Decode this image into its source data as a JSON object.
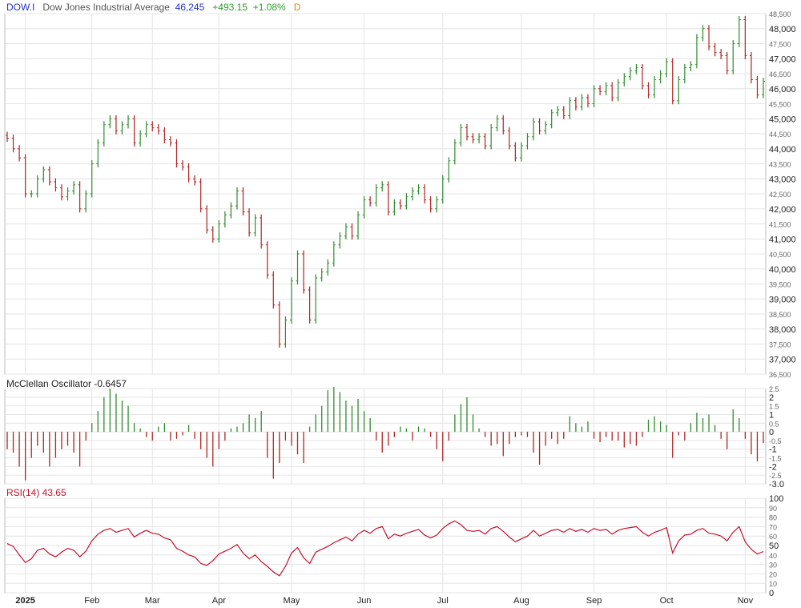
{
  "header": {
    "symbol": "DOW.I",
    "name": "Dow Jones Industrial Average",
    "last": "46,245",
    "change": "+493.15",
    "change_pct": "+1.08%",
    "period": "D"
  },
  "mcclellan": {
    "label": "McClellan Oscillator -0.6457"
  },
  "rsi": {
    "label": "RSI(14) 43.65"
  },
  "colors": {
    "up": "#2e8b2e",
    "down": "#b22222",
    "rsi_line": "#c8102e",
    "grid": "#e4e4e4",
    "frame": "#bbbbbb"
  },
  "chart_data": [
    {
      "type": "ohlc",
      "series": [
        {
          "name": "DOW.I"
        }
      ],
      "x_labels": [
        "2025",
        "Feb",
        "Mar",
        "Apr",
        "May",
        "Jun",
        "Jul",
        "Aug",
        "Sep",
        "Oct",
        "Nov"
      ],
      "y_ticks": [
        "48,500",
        "48,000",
        "47,500",
        "47,000",
        "46,500",
        "46,000",
        "45,500",
        "45,000",
        "44,500",
        "44,000",
        "43,500",
        "43,000",
        "42,500",
        "42,000",
        "41,500",
        "41,000",
        "40,500",
        "40,000",
        "39,500",
        "39,000",
        "38,500",
        "38,000",
        "37,500",
        "37,000",
        "36,500"
      ],
      "ylim": [
        36500,
        48500
      ],
      "last": 46245,
      "close": [
        44350,
        44000,
        43700,
        42500,
        42500,
        43000,
        43300,
        42900,
        42700,
        42400,
        42600,
        42800,
        42000,
        42500,
        43500,
        44200,
        44800,
        45000,
        44600,
        44800,
        45000,
        44200,
        44500,
        44800,
        44700,
        44600,
        44300,
        44200,
        43500,
        43400,
        43000,
        42900,
        42000,
        41300,
        41000,
        41500,
        41800,
        42100,
        42600,
        41900,
        41200,
        41700,
        40800,
        39800,
        38800,
        37500,
        38300,
        39600,
        40500,
        39300,
        38300,
        39700,
        39900,
        40200,
        40800,
        41100,
        41400,
        41100,
        41800,
        42300,
        42200,
        42700,
        42800,
        41900,
        42200,
        42100,
        42400,
        42600,
        42700,
        42300,
        42000,
        42300,
        43000,
        43600,
        44200,
        44700,
        44400,
        44300,
        44400,
        44100,
        44700,
        45000,
        44600,
        44100,
        43700,
        44100,
        44400,
        44900,
        44600,
        44800,
        45200,
        45300,
        45100,
        45600,
        45400,
        45700,
        45500,
        46000,
        45900,
        46100,
        45700,
        46200,
        46400,
        46600,
        46700,
        46100,
        45800,
        46300,
        46500,
        46900,
        45600,
        46300,
        46700,
        46800,
        47700,
        48000,
        47400,
        47200,
        47100,
        46600,
        47500,
        48300,
        47100,
        46300,
        45800,
        46245
      ]
    },
    {
      "type": "bar",
      "series": [
        {
          "name": "McClellan Oscillator"
        }
      ],
      "y_ticks": [
        "2.5",
        "2",
        "1.5",
        "1",
        "0.5",
        "0",
        "-0.5",
        "-1",
        "-1.5",
        "-2",
        "-2.5",
        "-3.0"
      ],
      "ylim": [
        -3.0,
        2.5
      ],
      "last": -0.6457,
      "values": [
        -1.0,
        -1.2,
        -2.0,
        -2.8,
        -1.5,
        -0.8,
        -1.2,
        -2.0,
        -1.5,
        -1.0,
        -0.8,
        -1.2,
        -2.0,
        -0.5,
        0.5,
        1.2,
        2.0,
        2.5,
        2.2,
        1.8,
        1.5,
        0.5,
        0.2,
        -0.3,
        -0.5,
        0.3,
        0.5,
        -0.5,
        -0.4,
        -0.2,
        0.4,
        -0.4,
        -1.0,
        -1.5,
        -2.0,
        -1.0,
        -0.5,
        0.2,
        0.3,
        0.5,
        1.0,
        0.8,
        1.2,
        -1.5,
        -2.7,
        -1.8,
        -0.5,
        -0.8,
        -1.3,
        -1.8,
        0.3,
        1.0,
        1.5,
        2.4,
        2.6,
        2.3,
        1.8,
        1.5,
        1.9,
        1.2,
        0.8,
        -0.5,
        -1.2,
        -0.8,
        -0.3,
        0.3,
        0.2,
        -0.5,
        0.3,
        0.2,
        -0.3,
        -1.0,
        -1.7,
        -0.5,
        1.0,
        1.6,
        2.0,
        1.0,
        0.2,
        -0.3,
        -0.8,
        -0.7,
        -1.4,
        -0.7,
        -0.3,
        -0.2,
        -0.3,
        -1.2,
        -1.9,
        -0.8,
        -0.4,
        -0.7,
        -0.4,
        0.9,
        0.5,
        0.3,
        0.6,
        -0.4,
        -0.6,
        -0.3,
        -0.5,
        -0.5,
        -0.9,
        -0.7,
        -0.8,
        -0.3,
        0.7,
        0.9,
        0.6,
        0.4,
        -1.5,
        -0.2,
        -0.5,
        0.5,
        1.1,
        0.8,
        1.0,
        0.4,
        -0.4,
        -1.0,
        1.3,
        0.8,
        -0.4,
        -1.3,
        -1.7,
        -0.65
      ]
    },
    {
      "type": "line",
      "series": [
        {
          "name": "RSI(14)"
        }
      ],
      "y_ticks": [
        "100",
        "90",
        "80",
        "70",
        "60",
        "50",
        "40",
        "30",
        "20",
        "10",
        "0"
      ],
      "ylim": [
        0,
        100
      ],
      "last": 43.65,
      "values": [
        52,
        49,
        40,
        32,
        36,
        45,
        47,
        41,
        38,
        43,
        47,
        45,
        38,
        44,
        55,
        62,
        66,
        68,
        64,
        66,
        68,
        59,
        63,
        66,
        63,
        62,
        58,
        56,
        47,
        44,
        40,
        38,
        31,
        29,
        34,
        41,
        44,
        47,
        51,
        42,
        36,
        40,
        33,
        28,
        22,
        18,
        28,
        42,
        48,
        37,
        31,
        43,
        46,
        49,
        53,
        56,
        59,
        55,
        62,
        66,
        63,
        68,
        70,
        57,
        62,
        60,
        63,
        65,
        67,
        61,
        58,
        61,
        68,
        73,
        76,
        72,
        66,
        65,
        66,
        62,
        68,
        70,
        65,
        59,
        54,
        57,
        60,
        66,
        60,
        63,
        66,
        67,
        64,
        68,
        65,
        67,
        64,
        68,
        66,
        67,
        62,
        66,
        68,
        69,
        70,
        64,
        60,
        64,
        66,
        69,
        42,
        55,
        61,
        62,
        66,
        68,
        63,
        62,
        60,
        55,
        64,
        70,
        54,
        46,
        41,
        43.65
      ]
    }
  ]
}
